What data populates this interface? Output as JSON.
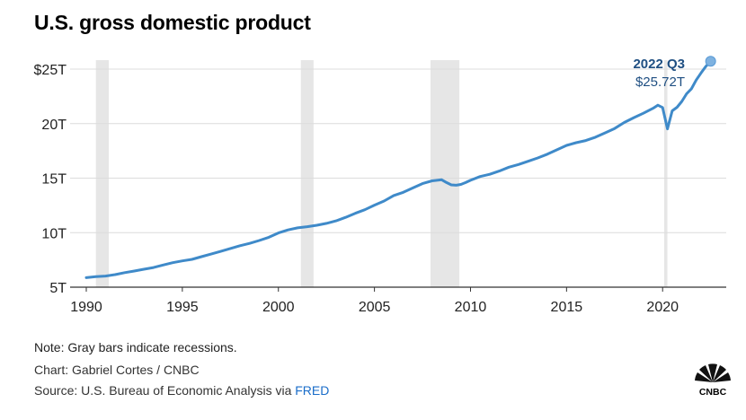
{
  "header": {
    "title": "U.S. gross domestic product"
  },
  "footer": {
    "note": "Note: Gray bars indicate recessions.",
    "credit": "Chart: Gabriel Cortes / CNBC",
    "source_prefix": "Source: U.S. Bureau of Economic Analysis via ",
    "source_link": "FRED"
  },
  "logo": {
    "text": "CNBC",
    "icon": "peacock-logo-icon"
  },
  "colors": {
    "line": "#3f8ac9",
    "recession": "#e6e6e6",
    "annotation": "#1f4f82",
    "link": "#1a6dc9"
  },
  "chart_data": {
    "type": "line",
    "title": "U.S. gross domestic product",
    "xlabel": "",
    "ylabel": "",
    "xlim": [
      1990,
      2022.75
    ],
    "ylim": [
      5,
      25
    ],
    "x_ticks": [
      1990,
      1995,
      2000,
      2005,
      2010,
      2015,
      2020
    ],
    "x_tick_labels": [
      "1990",
      "1995",
      "2000",
      "2005",
      "2010",
      "2015",
      "2020"
    ],
    "y_ticks": [
      5,
      10,
      15,
      20,
      25
    ],
    "y_tick_labels": [
      "5T",
      "10T",
      "15T",
      "20T",
      "$25T"
    ],
    "grid": "horizontal",
    "recessions": [
      [
        1990.5,
        1991.17
      ],
      [
        2001.17,
        2001.83
      ],
      [
        2007.92,
        2009.42
      ],
      [
        2020.08,
        2020.25
      ]
    ],
    "series": [
      {
        "x": [
          1990,
          1990.5,
          1991,
          1991.5,
          1992,
          1992.5,
          1993,
          1993.5,
          1994,
          1994.5,
          1995,
          1995.5,
          1996,
          1996.5,
          1997,
          1997.5,
          1998,
          1998.5,
          1999,
          1999.5,
          2000,
          2000.5,
          2001,
          2001.5,
          2002,
          2002.5,
          2003,
          2003.5,
          2004,
          2004.5,
          2005,
          2005.5,
          2006,
          2006.5,
          2007,
          2007.5,
          2008,
          2008.25,
          2008.5,
          2008.75,
          2009,
          2009.25,
          2009.5,
          2009.75,
          2010,
          2010.5,
          2011,
          2011.5,
          2012,
          2012.5,
          2013,
          2013.5,
          2014,
          2014.5,
          2015,
          2015.5,
          2016,
          2016.5,
          2017,
          2017.5,
          2018,
          2018.5,
          2019,
          2019.5,
          2019.75,
          2020,
          2020.25,
          2020.5,
          2020.75,
          2021,
          2021.25,
          2021.5,
          2021.75,
          2022,
          2022.25,
          2022.5
        ],
        "values": [
          5.87,
          5.96,
          6.02,
          6.15,
          6.33,
          6.48,
          6.65,
          6.8,
          7.03,
          7.25,
          7.41,
          7.55,
          7.8,
          8.04,
          8.28,
          8.55,
          8.8,
          9.02,
          9.28,
          9.58,
          9.97,
          10.25,
          10.44,
          10.55,
          10.68,
          10.85,
          11.08,
          11.4,
          11.77,
          12.1,
          12.52,
          12.9,
          13.4,
          13.7,
          14.1,
          14.5,
          14.75,
          14.8,
          14.85,
          14.6,
          14.38,
          14.35,
          14.42,
          14.6,
          14.8,
          15.15,
          15.35,
          15.65,
          16.0,
          16.25,
          16.55,
          16.85,
          17.2,
          17.6,
          18.0,
          18.25,
          18.45,
          18.75,
          19.15,
          19.55,
          20.1,
          20.55,
          20.95,
          21.4,
          21.69,
          21.48,
          19.52,
          21.17,
          21.5,
          22.04,
          22.74,
          23.2,
          24.0,
          24.65,
          25.25,
          25.72
        ]
      }
    ],
    "annotation": {
      "x": 2022.5,
      "y": 25.72,
      "label": "2022 Q3",
      "value_label": "$25.72T"
    }
  }
}
